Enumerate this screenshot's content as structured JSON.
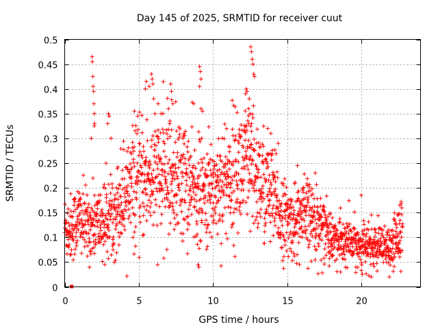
{
  "chart_data": {
    "type": "scatter",
    "title": "Day 145 of 2025, SRMTID for receiver cuut",
    "xlabel": "GPS time / hours",
    "ylabel": "SRMTID / TECUs",
    "xlim": [
      0,
      24
    ],
    "ylim": [
      0,
      0.5
    ],
    "xticks": [
      0,
      5,
      10,
      15,
      20
    ],
    "yticks": [
      0,
      0.05,
      0.1,
      0.15,
      0.2,
      0.25,
      0.3,
      0.35,
      0.4,
      0.45,
      0.5
    ],
    "xtick_labels": [
      "0",
      "5",
      "10",
      "15",
      "20"
    ],
    "ytick_labels": [
      "0",
      "0.05",
      "0.1",
      "0.15",
      "0.2",
      "0.25",
      "0.3",
      "0.35",
      "0.4",
      "0.45",
      "0.5"
    ],
    "grid": true,
    "marker": "+",
    "color": "#ff0000",
    "series": [
      {
        "name": "SRMTID",
        "trend": [
          [
            0.0,
            0.12
          ],
          [
            0.5,
            0.12
          ],
          [
            1.0,
            0.14
          ],
          [
            1.5,
            0.12
          ],
          [
            2.0,
            0.13
          ],
          [
            2.5,
            0.13
          ],
          [
            3.0,
            0.14
          ],
          [
            3.5,
            0.16
          ],
          [
            4.0,
            0.19
          ],
          [
            4.5,
            0.2
          ],
          [
            5.0,
            0.21
          ],
          [
            5.5,
            0.22
          ],
          [
            6.0,
            0.22
          ],
          [
            6.5,
            0.22
          ],
          [
            7.0,
            0.23
          ],
          [
            7.5,
            0.22
          ],
          [
            8.0,
            0.22
          ],
          [
            8.5,
            0.2
          ],
          [
            9.0,
            0.19
          ],
          [
            9.5,
            0.18
          ],
          [
            10.0,
            0.2
          ],
          [
            10.5,
            0.21
          ],
          [
            11.0,
            0.22
          ],
          [
            11.5,
            0.23
          ],
          [
            12.0,
            0.24
          ],
          [
            12.5,
            0.23
          ],
          [
            13.0,
            0.22
          ],
          [
            13.5,
            0.2
          ],
          [
            14.0,
            0.18
          ],
          [
            14.5,
            0.15
          ],
          [
            15.0,
            0.13
          ],
          [
            15.5,
            0.13
          ],
          [
            16.0,
            0.14
          ],
          [
            16.5,
            0.14
          ],
          [
            17.0,
            0.13
          ],
          [
            17.5,
            0.12
          ],
          [
            18.0,
            0.1
          ],
          [
            18.5,
            0.09
          ],
          [
            19.0,
            0.09
          ],
          [
            19.5,
            0.09
          ],
          [
            20.0,
            0.08
          ],
          [
            20.5,
            0.08
          ],
          [
            21.0,
            0.08
          ],
          [
            21.5,
            0.075
          ],
          [
            22.0,
            0.075
          ],
          [
            22.5,
            0.11
          ],
          [
            22.8,
            0.13
          ]
        ],
        "spikes": [
          [
            1.85,
            0.465
          ],
          [
            1.87,
            0.455
          ],
          [
            1.9,
            0.425
          ],
          [
            1.92,
            0.405
          ],
          [
            1.95,
            0.395
          ],
          [
            1.97,
            0.37
          ],
          [
            2.0,
            0.35
          ],
          [
            2.02,
            0.33
          ],
          [
            2.0,
            0.325
          ],
          [
            1.8,
            0.3
          ],
          [
            2.95,
            0.35
          ],
          [
            3.0,
            0.345
          ],
          [
            2.9,
            0.33
          ],
          [
            4.7,
            0.355
          ],
          [
            5.45,
            0.4
          ],
          [
            5.5,
            0.415
          ],
          [
            5.7,
            0.405
          ],
          [
            5.85,
            0.43
          ],
          [
            5.9,
            0.42
          ],
          [
            5.95,
            0.41
          ],
          [
            6.0,
            0.38
          ],
          [
            6.3,
            0.37
          ],
          [
            6.5,
            0.35
          ],
          [
            7.0,
            0.36
          ],
          [
            7.1,
            0.335
          ],
          [
            7.15,
            0.41
          ],
          [
            7.2,
            0.395
          ],
          [
            7.3,
            0.37
          ],
          [
            8.7,
            0.37
          ],
          [
            9.1,
            0.445
          ],
          [
            9.15,
            0.435
          ],
          [
            9.2,
            0.42
          ],
          [
            9.1,
            0.405
          ],
          [
            9.2,
            0.36
          ],
          [
            9.3,
            0.355
          ],
          [
            12.2,
            0.39
          ],
          [
            12.25,
            0.4
          ],
          [
            12.3,
            0.395
          ],
          [
            12.4,
            0.36
          ],
          [
            12.45,
            0.38
          ],
          [
            12.55,
            0.485
          ],
          [
            12.6,
            0.475
          ],
          [
            12.65,
            0.46
          ],
          [
            12.7,
            0.45
          ],
          [
            12.75,
            0.43
          ],
          [
            12.8,
            0.425
          ],
          [
            12.5,
            0.35
          ],
          [
            12.6,
            0.33
          ],
          [
            13.7,
            0.32
          ],
          [
            13.9,
            0.31
          ],
          [
            14.4,
            0.29
          ],
          [
            15.7,
            0.245
          ],
          [
            16.9,
            0.23
          ],
          [
            20.0,
            0.185
          ],
          [
            9.0,
            0.045
          ],
          [
            9.05,
            0.04
          ],
          [
            2.7,
            0.045
          ],
          [
            18.6,
            0.03
          ],
          [
            21.9,
            0.02
          ],
          [
            22.6,
            0.165
          ]
        ],
        "special_point": [
          0.45,
          0.0
        ]
      }
    ]
  }
}
